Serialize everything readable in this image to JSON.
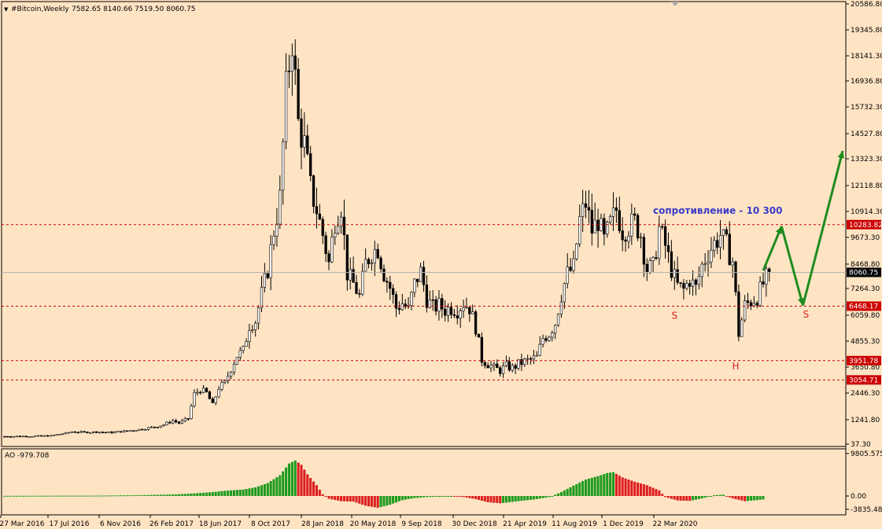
{
  "header": {
    "symbol_label": "#Bitcoin,Weekly",
    "ohlc": "7582.65 8140.66 7519.50 8060.75"
  },
  "colors": {
    "background": "#FFE4C4",
    "grid_line": "#000000",
    "candle_body_up": "#FFFFFF",
    "candle_body_down": "#000000",
    "level_line": "#CC0000",
    "current_price_line": "#B0B0B0",
    "projection_arrow": "#1E8C1E",
    "annotation_blue": "#3C3CC8",
    "pattern_label": "#E02020",
    "ao_up": "#1E9B1E",
    "ao_down": "#DC2020"
  },
  "chart_data": [
    {
      "type": "candlestick",
      "title": "#Bitcoin,Weekly",
      "ylim": [
        37.3,
        20586.8
      ],
      "y_ticks": [
        "20586.80",
        "19345.80",
        "18141.30",
        "16936.80",
        "15732.30",
        "14527.80",
        "13323.30",
        "12118.80",
        "10914.30",
        "9673.30",
        "8468.80",
        "7264.30",
        "6059.80",
        "4855.30",
        "3650.80",
        "2446.30",
        "1241.80",
        "37.30"
      ],
      "x_ticks": [
        "27 Mar 2016",
        "17 Jul 2016",
        "6 Nov 2016",
        "26 Feb 2017",
        "18 Jun 2017",
        "8 Oct 2017",
        "28 Jan 2018",
        "20 May 2018",
        "9 Sep 2018",
        "30 Dec 2018",
        "21 Apr 2019",
        "11 Aug 2019",
        "1 Dec 2019",
        "22 Mar 2020"
      ],
      "close_path": [
        [
          0,
          420
        ],
        [
          8,
          430
        ],
        [
          15,
          450
        ],
        [
          20,
          580
        ],
        [
          22,
          650
        ],
        [
          26,
          620
        ],
        [
          30,
          640
        ],
        [
          35,
          610
        ],
        [
          40,
          690
        ],
        [
          45,
          780
        ],
        [
          50,
          920
        ],
        [
          52,
          1000
        ],
        [
          55,
          1200
        ],
        [
          57,
          1080
        ],
        [
          60,
          1300
        ],
        [
          62,
          2400
        ],
        [
          64,
          2600
        ],
        [
          66,
          2450
        ],
        [
          68,
          1900
        ],
        [
          70,
          2700
        ],
        [
          72,
          2900
        ],
        [
          74,
          3600
        ],
        [
          76,
          4200
        ],
        [
          78,
          4400
        ],
        [
          80,
          5600
        ],
        [
          82,
          5800
        ],
        [
          84,
          7000
        ],
        [
          86,
          8200
        ],
        [
          88,
          10000
        ],
        [
          90,
          11500
        ],
        [
          92,
          16500
        ],
        [
          94,
          19000
        ],
        [
          96,
          15000
        ],
        [
          98,
          14000
        ],
        [
          100,
          12000
        ],
        [
          102,
          11000
        ],
        [
          104,
          9800
        ],
        [
          106,
          8500
        ],
        [
          108,
          10500
        ],
        [
          110,
          11200
        ],
        [
          112,
          8000
        ],
        [
          114,
          7500
        ],
        [
          116,
          6900
        ],
        [
          118,
          8500
        ],
        [
          120,
          9000
        ],
        [
          122,
          9200
        ],
        [
          124,
          8000
        ],
        [
          126,
          7300
        ],
        [
          128,
          6400
        ],
        [
          130,
          6600
        ],
        [
          132,
          6300
        ],
        [
          134,
          7500
        ],
        [
          136,
          8100
        ],
        [
          138,
          6800
        ],
        [
          140,
          6400
        ],
        [
          142,
          6500
        ],
        [
          144,
          6300
        ],
        [
          146,
          6400
        ],
        [
          148,
          6300
        ],
        [
          150,
          6600
        ],
        [
          152,
          6400
        ],
        [
          154,
          5500
        ],
        [
          156,
          4000
        ],
        [
          158,
          3800
        ],
        [
          160,
          3600
        ],
        [
          162,
          3500
        ],
        [
          164,
          3700
        ],
        [
          166,
          3600
        ],
        [
          168,
          3800
        ],
        [
          170,
          3900
        ],
        [
          172,
          4000
        ],
        [
          174,
          4100
        ],
        [
          176,
          5000
        ],
        [
          178,
          5200
        ],
        [
          180,
          5700
        ],
        [
          182,
          7000
        ],
        [
          184,
          8000
        ],
        [
          186,
          8300
        ],
        [
          188,
          10500
        ],
        [
          190,
          11300
        ],
        [
          192,
          10000
        ],
        [
          194,
          10500
        ],
        [
          196,
          9500
        ],
        [
          198,
          10300
        ],
        [
          200,
          11000
        ],
        [
          202,
          10000
        ],
        [
          204,
          10200
        ],
        [
          206,
          10400
        ],
        [
          208,
          9800
        ],
        [
          210,
          8200
        ],
        [
          212,
          8300
        ],
        [
          214,
          10100
        ],
        [
          216,
          9300
        ],
        [
          218,
          8200
        ],
        [
          220,
          7400
        ],
        [
          222,
          7200
        ],
        [
          224,
          7700
        ],
        [
          226,
          7300
        ],
        [
          228,
          8400
        ],
        [
          230,
          9000
        ],
        [
          232,
          9400
        ],
        [
          234,
          9800
        ],
        [
          236,
          9300
        ],
        [
          238,
          8600
        ],
        [
          240,
          5200
        ],
        [
          242,
          6500
        ],
        [
          244,
          6700
        ],
        [
          246,
          6900
        ],
        [
          248,
          7500
        ],
        [
          250,
          8060
        ]
      ],
      "horizontal_levels": [
        {
          "value": 10283.82,
          "label": "10283.82"
        },
        {
          "value": 6468.17,
          "label": "6468.17"
        },
        {
          "value": 3951.78,
          "label": "3951.78"
        },
        {
          "value": 3054.71,
          "label": "3054.71"
        }
      ],
      "current_price": {
        "value": 8060.75,
        "label": "8060.75"
      },
      "annotations": [
        {
          "text": "сопротивление - 10 300",
          "x": 212,
          "y": 10800
        },
        {
          "text": "S",
          "x": 219,
          "y": 5900
        },
        {
          "text": "H",
          "x": 239,
          "y": 3550
        },
        {
          "text": "S",
          "x": 262,
          "y": 5950
        }
      ],
      "projection_path": [
        [
          248,
          8150
        ],
        [
          254,
          10200
        ],
        [
          261,
          6500
        ],
        [
          274,
          13700
        ]
      ]
    },
    {
      "type": "bar",
      "title": "AO -979.708",
      "ylim": [
        -3835.489,
        10500
      ],
      "y_ticks": [
        "9805.575",
        "0.00",
        "-3835.489"
      ],
      "values": [
        [
          0,
          30
        ],
        [
          15,
          60
        ],
        [
          30,
          80
        ],
        [
          45,
          200
        ],
        [
          55,
          350
        ],
        [
          62,
          600
        ],
        [
          68,
          900
        ],
        [
          72,
          1200
        ],
        [
          78,
          1500
        ],
        [
          82,
          2000
        ],
        [
          86,
          3000
        ],
        [
          90,
          4800
        ],
        [
          93,
          7500
        ],
        [
          95,
          8200
        ],
        [
          97,
          7200
        ],
        [
          99,
          5000
        ],
        [
          102,
          2500
        ],
        [
          104,
          400
        ],
        [
          106,
          -800
        ],
        [
          110,
          -1500
        ],
        [
          114,
          -1600
        ],
        [
          118,
          -2800
        ],
        [
          122,
          -3400
        ],
        [
          126,
          -2500
        ],
        [
          130,
          -1200
        ],
        [
          134,
          -600
        ],
        [
          138,
          -300
        ],
        [
          142,
          -200
        ],
        [
          146,
          -100
        ],
        [
          150,
          -300
        ],
        [
          154,
          -900
        ],
        [
          158,
          -1800
        ],
        [
          162,
          -2100
        ],
        [
          166,
          -1700
        ],
        [
          170,
          -1300
        ],
        [
          174,
          -900
        ],
        [
          178,
          -300
        ],
        [
          182,
          900
        ],
        [
          186,
          2400
        ],
        [
          190,
          3800
        ],
        [
          194,
          4600
        ],
        [
          197,
          5300
        ],
        [
          199,
          5500
        ],
        [
          202,
          4300
        ],
        [
          206,
          3300
        ],
        [
          210,
          2500
        ],
        [
          214,
          1300
        ],
        [
          216,
          -300
        ],
        [
          220,
          -1300
        ],
        [
          224,
          -1400
        ],
        [
          228,
          -700
        ],
        [
          232,
          200
        ],
        [
          235,
          300
        ],
        [
          238,
          -700
        ],
        [
          242,
          -1500
        ],
        [
          246,
          -1200
        ],
        [
          248,
          -980
        ]
      ]
    }
  ],
  "labels": {
    "resistance_text": "сопротивление - 10 300",
    "s_left": "S",
    "h_mid": "H",
    "s_right": "S",
    "ao_header": "AO -979.708"
  }
}
